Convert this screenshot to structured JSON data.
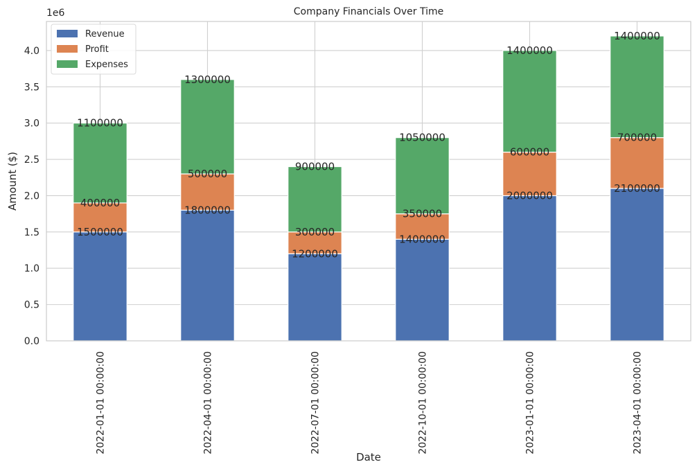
{
  "chart_data": {
    "type": "bar",
    "stacked": true,
    "title": "Company Financials Over Time",
    "xlabel": "Date",
    "ylabel": "Amount ($)",
    "y_offset_label": "1e6",
    "categories": [
      "2022-01-01 00:00:00",
      "2022-04-01 00:00:00",
      "2022-07-01 00:00:00",
      "2022-10-01 00:00:00",
      "2023-01-01 00:00:00",
      "2023-04-01 00:00:00"
    ],
    "series": [
      {
        "name": "Revenue",
        "color": "#4c72b0",
        "values": [
          1500000,
          1800000,
          1200000,
          1400000,
          2000000,
          2100000
        ]
      },
      {
        "name": "Profit",
        "color": "#dd8452",
        "values": [
          400000,
          500000,
          300000,
          350000,
          600000,
          700000
        ]
      },
      {
        "name": "Expenses",
        "color": "#55a868",
        "values": [
          1100000,
          1300000,
          900000,
          1050000,
          1400000,
          1400000
        ]
      }
    ],
    "ylim": [
      0,
      4400000
    ],
    "yticks": [
      0,
      500000,
      1000000,
      1500000,
      2000000,
      2500000,
      3000000,
      3500000,
      4000000
    ],
    "ytick_labels": [
      "0.0",
      "0.5",
      "1.0",
      "1.5",
      "2.0",
      "2.5",
      "3.0",
      "3.5",
      "4.0"
    ],
    "grid": true,
    "legend_position": "top-left"
  }
}
